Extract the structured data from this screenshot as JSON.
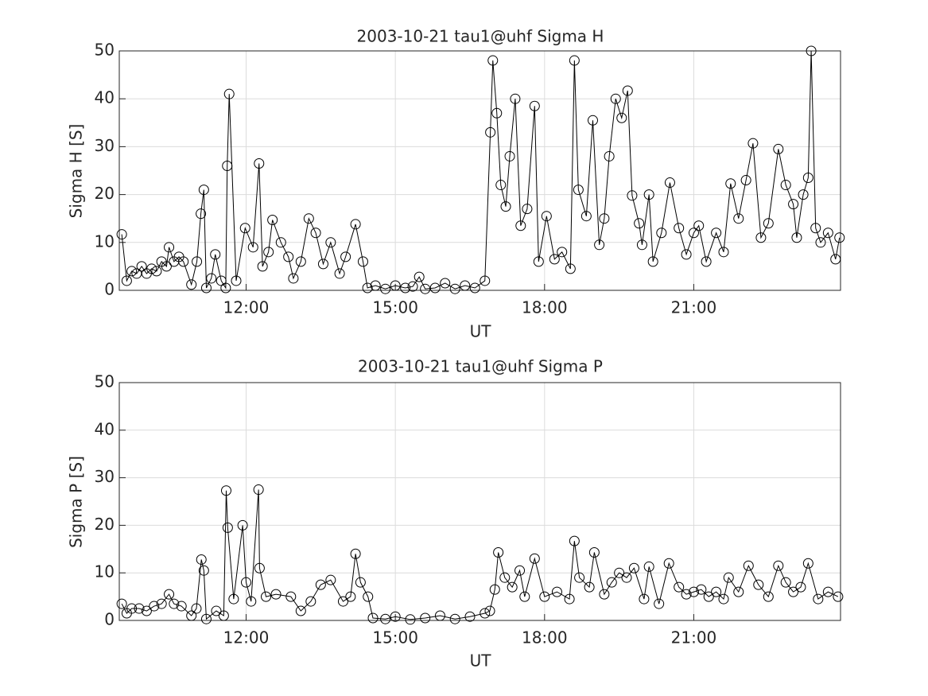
{
  "chart_data": [
    {
      "type": "line",
      "title": "2003-10-21  tau1@uhf Sigma H",
      "xlabel": "UT",
      "ylabel": "Sigma H [S]",
      "color": "#000000",
      "marker": "circle",
      "grid": true,
      "xlim": [
        9.45,
        23.95
      ],
      "ylim": [
        0,
        50
      ],
      "xticks": [
        {
          "value": 12,
          "label": "12:00"
        },
        {
          "value": 15,
          "label": "15:00"
        },
        {
          "value": 18,
          "label": "18:00"
        },
        {
          "value": 21,
          "label": "21:00"
        }
      ],
      "yticks": [
        0,
        10,
        20,
        30,
        40,
        50
      ],
      "x": [
        9.5,
        9.6,
        9.7,
        9.8,
        9.9,
        10.0,
        10.1,
        10.2,
        10.3,
        10.4,
        10.45,
        10.55,
        10.65,
        10.74,
        10.9,
        11.01,
        11.09,
        11.15,
        11.2,
        11.3,
        11.38,
        11.5,
        11.59,
        11.62,
        11.66,
        11.8,
        11.98,
        12.14,
        12.26,
        12.33,
        12.45,
        12.53,
        12.7,
        12.85,
        12.95,
        13.1,
        13.26,
        13.4,
        13.55,
        13.7,
        13.88,
        14.0,
        14.2,
        14.35,
        14.44,
        14.6,
        14.8,
        15.0,
        15.2,
        15.35,
        15.48,
        15.6,
        15.8,
        16.0,
        16.2,
        16.4,
        16.6,
        16.8,
        16.91,
        16.96,
        17.04,
        17.12,
        17.22,
        17.3,
        17.41,
        17.52,
        17.65,
        17.8,
        17.88,
        18.04,
        18.2,
        18.35,
        18.52,
        18.6,
        18.68,
        18.84,
        18.97,
        19.1,
        19.2,
        19.3,
        19.43,
        19.55,
        19.67,
        19.76,
        19.9,
        19.96,
        20.1,
        20.18,
        20.35,
        20.52,
        20.7,
        20.85,
        21.0,
        21.1,
        21.25,
        21.45,
        21.6,
        21.74,
        21.9,
        22.05,
        22.19,
        22.35,
        22.5,
        22.7,
        22.85,
        23.0,
        23.07,
        23.2,
        23.3,
        23.36,
        23.45,
        23.55,
        23.7,
        23.85,
        23.93
      ],
      "values": [
        11.7,
        2,
        4,
        3.5,
        5,
        3.5,
        4.5,
        4,
        6,
        5,
        9,
        6,
        7,
        6,
        1.2,
        6,
        16,
        21,
        0.5,
        2.5,
        7.5,
        2,
        0.5,
        26,
        41,
        2,
        13,
        9,
        26.5,
        5,
        8,
        14.7,
        10,
        7,
        2.5,
        6,
        15,
        12,
        5.5,
        10,
        3.5,
        7,
        13.8,
        6,
        0.5,
        1,
        0.3,
        1,
        0.5,
        0.8,
        2.8,
        0.3,
        0.5,
        1.5,
        0.3,
        1,
        0.5,
        2,
        33,
        48,
        37,
        22,
        17.5,
        28,
        40,
        13.5,
        17,
        38.5,
        6,
        15.5,
        6.5,
        8,
        4.5,
        48,
        21,
        15.5,
        35.5,
        9.5,
        15,
        28,
        40,
        36,
        41.7,
        19.8,
        14,
        9.5,
        20,
        6,
        12,
        22.5,
        13,
        7.5,
        12,
        13.5,
        6,
        12,
        8,
        22.3,
        15,
        23,
        30.7,
        11,
        14,
        29.5,
        22,
        18,
        11,
        20,
        23.5,
        50,
        13,
        10,
        12,
        6.5,
        11
      ]
    },
    {
      "type": "line",
      "title": "2003-10-21  tau1@uhf Sigma P",
      "xlabel": "UT",
      "ylabel": "Sigma P [S]",
      "color": "#000000",
      "marker": "circle",
      "grid": true,
      "xlim": [
        9.45,
        23.95
      ],
      "ylim": [
        0,
        50
      ],
      "xticks": [
        {
          "value": 12,
          "label": "12:00"
        },
        {
          "value": 15,
          "label": "15:00"
        },
        {
          "value": 18,
          "label": "18:00"
        },
        {
          "value": 21,
          "label": "21:00"
        }
      ],
      "yticks": [
        0,
        10,
        20,
        30,
        40,
        50
      ],
      "x": [
        9.5,
        9.6,
        9.7,
        9.85,
        10.0,
        10.15,
        10.3,
        10.45,
        10.55,
        10.7,
        10.9,
        11.0,
        11.1,
        11.15,
        11.2,
        11.4,
        11.55,
        11.6,
        11.63,
        11.75,
        11.93,
        12.0,
        12.1,
        12.25,
        12.27,
        12.4,
        12.6,
        12.9,
        13.1,
        13.3,
        13.5,
        13.7,
        13.95,
        14.1,
        14.2,
        14.3,
        14.45,
        14.55,
        14.8,
        15.0,
        15.3,
        15.6,
        15.9,
        16.2,
        16.5,
        16.8,
        16.9,
        17.0,
        17.07,
        17.2,
        17.35,
        17.5,
        17.6,
        17.8,
        18.0,
        18.25,
        18.5,
        18.6,
        18.7,
        18.9,
        19.0,
        19.2,
        19.35,
        19.5,
        19.65,
        19.8,
        20.0,
        20.1,
        20.3,
        20.5,
        20.7,
        20.85,
        21.0,
        21.15,
        21.3,
        21.45,
        21.6,
        21.7,
        21.9,
        22.1,
        22.3,
        22.5,
        22.7,
        22.85,
        23.0,
        23.15,
        23.3,
        23.5,
        23.7,
        23.9
      ],
      "values": [
        3.5,
        1.5,
        2.5,
        2.5,
        2,
        3,
        3.5,
        5.5,
        3.5,
        3,
        1,
        2.5,
        12.8,
        10.5,
        0.3,
        2,
        1,
        27.3,
        19.5,
        4.5,
        20,
        8,
        4,
        27.5,
        11,
        5,
        5.5,
        5,
        2,
        4,
        7.5,
        8.5,
        4,
        5,
        14,
        8,
        5,
        0.5,
        0.3,
        0.8,
        0.2,
        0.5,
        1,
        0.3,
        0.8,
        1.5,
        2,
        6.5,
        14.3,
        9,
        7,
        10.5,
        5,
        13,
        5,
        6,
        4.5,
        16.7,
        9,
        7,
        14.3,
        5.5,
        8,
        10,
        9,
        11,
        4.5,
        11.3,
        3.5,
        12,
        7,
        5.5,
        6,
        6.5,
        5,
        6,
        4.5,
        9,
        6,
        11.5,
        7.5,
        5,
        11.5,
        8,
        6,
        7,
        12,
        4.5,
        6,
        5
      ]
    }
  ]
}
